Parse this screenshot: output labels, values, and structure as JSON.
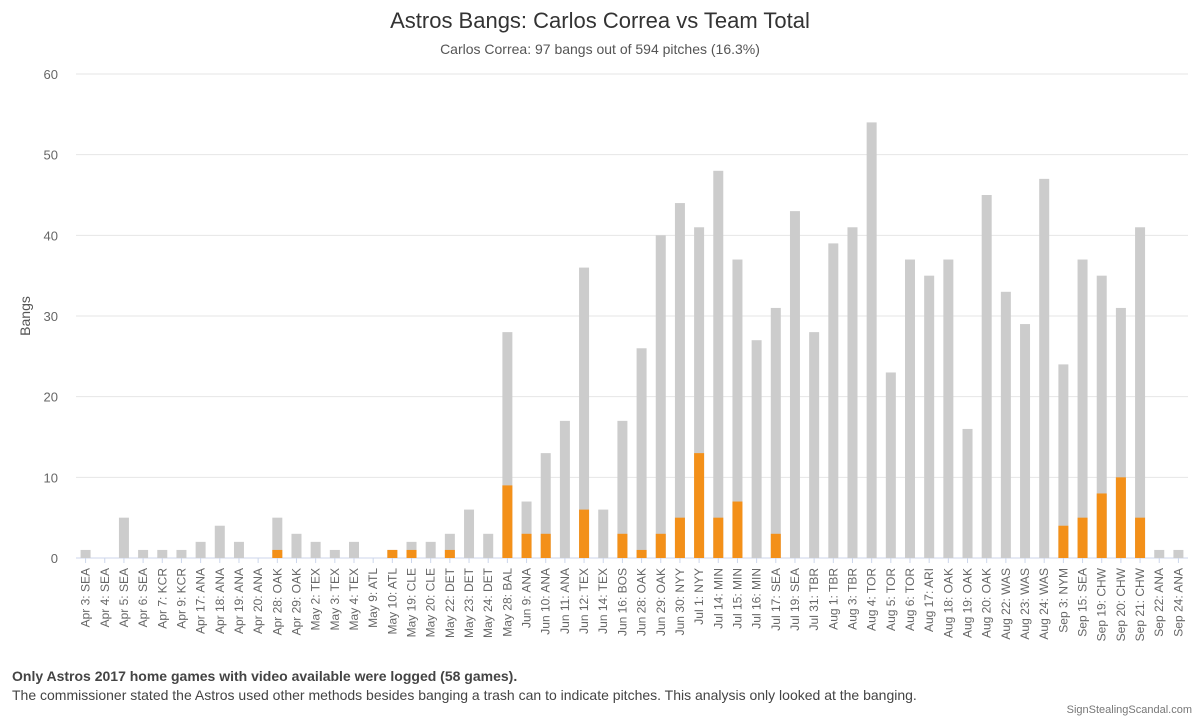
{
  "chart_data": {
    "type": "bar",
    "stacked": true,
    "title": "Astros Bangs: Carlos Correa vs Team Total",
    "subtitle": "Carlos Correa: 97 bangs out of 594 pitches (16.3%)",
    "xlabel": "",
    "ylabel": "Bangs",
    "ylim": [
      0,
      60
    ],
    "yticks": [
      0,
      10,
      20,
      30,
      40,
      50,
      60
    ],
    "grid": true,
    "legend": "none",
    "categories": [
      "Apr 3: SEA",
      "Apr 4: SEA",
      "Apr 5: SEA",
      "Apr 6: SEA",
      "Apr 7: KCR",
      "Apr 9: KCR",
      "Apr 17: ANA",
      "Apr 18: ANA",
      "Apr 19: ANA",
      "Apr 20: ANA",
      "Apr 28: OAK",
      "Apr 29: OAK",
      "May 2: TEX",
      "May 3: TEX",
      "May 4: TEX",
      "May 9: ATL",
      "May 10: ATL",
      "May 19: CLE",
      "May 20: CLE",
      "May 22: DET",
      "May 23: DET",
      "May 24: DET",
      "May 28: BAL",
      "Jun 9: ANA",
      "Jun 10: ANA",
      "Jun 11: ANA",
      "Jun 12: TEX",
      "Jun 14: TEX",
      "Jun 16: BOS",
      "Jun 28: OAK",
      "Jun 29: OAK",
      "Jun 30: NYY",
      "Jul 1: NYY",
      "Jul 14: MIN",
      "Jul 15: MIN",
      "Jul 16: MIN",
      "Jul 17: SEA",
      "Jul 19: SEA",
      "Jul 31: TBR",
      "Aug 1: TBR",
      "Aug 3: TBR",
      "Aug 4: TOR",
      "Aug 5: TOR",
      "Aug 6: TOR",
      "Aug 17: ARI",
      "Aug 18: OAK",
      "Aug 19: OAK",
      "Aug 20: OAK",
      "Aug 22: WAS",
      "Aug 23: WAS",
      "Aug 24: WAS",
      "Sep 3: NYM",
      "Sep 15: SEA",
      "Sep 19: CHW",
      "Sep 20: CHW",
      "Sep 21: CHW",
      "Sep 22: ANA",
      "Sep 24: ANA"
    ],
    "series": [
      {
        "color": "#cccccc",
        "values": [
          1,
          0,
          5,
          1,
          1,
          1,
          2,
          4,
          2,
          0,
          5,
          3,
          2,
          1,
          2,
          0,
          1,
          2,
          2,
          3,
          6,
          3,
          28,
          7,
          13,
          17,
          36,
          6,
          17,
          26,
          40,
          44,
          41,
          48,
          37,
          27,
          31,
          43,
          28,
          39,
          41,
          54,
          23,
          37,
          35,
          37,
          16,
          45,
          33,
          29,
          47,
          24,
          37,
          35,
          31,
          41,
          1,
          1
        ]
      },
      {
        "color": "#f39019",
        "values": [
          0,
          0,
          0,
          0,
          0,
          0,
          0,
          0,
          0,
          0,
          1,
          0,
          0,
          0,
          0,
          0,
          1,
          1,
          0,
          1,
          0,
          0,
          9,
          3,
          3,
          0,
          6,
          0,
          3,
          1,
          3,
          5,
          13,
          5,
          7,
          0,
          3,
          0,
          0,
          0,
          0,
          0,
          0,
          0,
          0,
          0,
          0,
          0,
          0,
          0,
          0,
          4,
          5,
          8,
          10,
          5,
          0,
          0
        ]
      }
    ]
  },
  "footer": {
    "note_bold": "Only Astros 2017 home games with video available were logged (58 games).",
    "note": "The commissioner stated the Astros used other methods besides banging a trash can to indicate pitches. This analysis only looked at the banging.",
    "credit": "SignStealingScandal.com"
  }
}
